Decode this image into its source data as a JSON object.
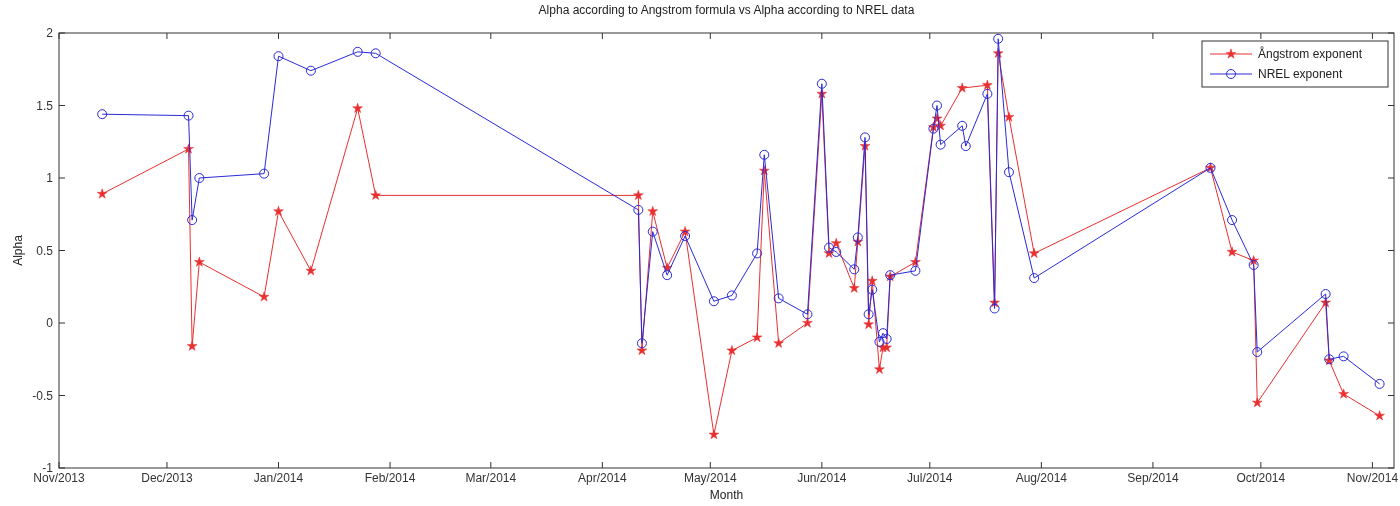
{
  "chart_data": {
    "type": "line",
    "title": "Alpha according to Angstrom formula vs Alpha according to NREL data",
    "xlabel": "Month",
    "ylabel": "Alpha",
    "xlim": [
      "2013-11-01",
      "2014-11-07"
    ],
    "xticks": [
      {
        "value": "2013-11-01",
        "label": "Nov/2013"
      },
      {
        "value": "2013-12-01",
        "label": "Dec/2013"
      },
      {
        "value": "2014-01-01",
        "label": "Jan/2014"
      },
      {
        "value": "2014-02-01",
        "label": "Feb/2014"
      },
      {
        "value": "2014-03-01",
        "label": "Mar/2014"
      },
      {
        "value": "2014-04-01",
        "label": "Apr/2014"
      },
      {
        "value": "2014-05-01",
        "label": "May/2014"
      },
      {
        "value": "2014-06-01",
        "label": "Jun/2014"
      },
      {
        "value": "2014-07-01",
        "label": "Jul/2014"
      },
      {
        "value": "2014-08-01",
        "label": "Aug/2014"
      },
      {
        "value": "2014-09-01",
        "label": "Sep/2014"
      },
      {
        "value": "2014-10-01",
        "label": "Oct/2014"
      },
      {
        "value": "2014-11-01",
        "label": "Nov/2014"
      }
    ],
    "ylim": [
      -1,
      2
    ],
    "yticks": [
      -1,
      -0.5,
      0,
      0.5,
      1,
      1.5,
      2
    ],
    "grid": false,
    "legend": "top right",
    "line_style": "solid",
    "series": [
      {
        "name": "Ångstrom exponent",
        "color": "#e83030",
        "marker": "star",
        "x": [
          "2013-11-13",
          "2013-12-07",
          "2013-12-08",
          "2013-12-10",
          "2013-12-28",
          "2014-01-01",
          "2014-01-10",
          "2014-01-23",
          "2014-01-28",
          "2014-04-11",
          "2014-04-12",
          "2014-04-15",
          "2014-04-19",
          "2014-04-24",
          "2014-05-02",
          "2014-05-07",
          "2014-05-14",
          "2014-05-16",
          "2014-05-20",
          "2014-05-28",
          "2014-06-01",
          "2014-06-03",
          "2014-06-05",
          "2014-06-10",
          "2014-06-11",
          "2014-06-13",
          "2014-06-14",
          "2014-06-15",
          "2014-06-17",
          "2014-06-18",
          "2014-06-19",
          "2014-06-20",
          "2014-06-27",
          "2014-07-02",
          "2014-07-03",
          "2014-07-04",
          "2014-07-10",
          "2014-07-17",
          "2014-07-19",
          "2014-07-20",
          "2014-07-23",
          "2014-07-30",
          "2014-09-17",
          "2014-09-23",
          "2014-09-29",
          "2014-09-30",
          "2014-10-19",
          "2014-10-20",
          "2014-10-24",
          "2014-11-03"
        ],
        "values": [
          0.89,
          1.2,
          -0.16,
          0.42,
          0.18,
          0.77,
          0.36,
          1.48,
          0.88,
          0.88,
          -0.19,
          0.77,
          0.38,
          0.63,
          -0.77,
          -0.19,
          -0.1,
          1.05,
          -0.14,
          0.0,
          1.58,
          0.48,
          0.55,
          0.24,
          0.56,
          1.22,
          -0.01,
          0.29,
          -0.32,
          -0.17,
          -0.17,
          0.32,
          0.42,
          1.35,
          1.41,
          1.36,
          1.62,
          1.64,
          0.14,
          1.86,
          1.42,
          0.48,
          1.07,
          0.49,
          0.43,
          -0.55,
          0.14,
          -0.26,
          -0.49,
          -0.64
        ]
      },
      {
        "name": "NREL exponent",
        "color": "#2a2ad8",
        "marker": "circle",
        "x": [
          "2013-11-13",
          "2013-12-07",
          "2013-12-08",
          "2013-12-10",
          "2013-12-28",
          "2014-01-01",
          "2014-01-10",
          "2014-01-23",
          "2014-01-28",
          "2014-04-11",
          "2014-04-12",
          "2014-04-15",
          "2014-04-19",
          "2014-04-24",
          "2014-05-02",
          "2014-05-07",
          "2014-05-14",
          "2014-05-16",
          "2014-05-20",
          "2014-05-28",
          "2014-06-01",
          "2014-06-03",
          "2014-06-05",
          "2014-06-10",
          "2014-06-11",
          "2014-06-13",
          "2014-06-14",
          "2014-06-15",
          "2014-06-17",
          "2014-06-18",
          "2014-06-19",
          "2014-06-20",
          "2014-06-27",
          "2014-07-02",
          "2014-07-03",
          "2014-07-04",
          "2014-07-10",
          "2014-07-11",
          "2014-07-17",
          "2014-07-19",
          "2014-07-20",
          "2014-07-23",
          "2014-07-30",
          "2014-09-17",
          "2014-09-23",
          "2014-09-29",
          "2014-09-30",
          "2014-10-19",
          "2014-10-20",
          "2014-10-24",
          "2014-11-03"
        ],
        "values": [
          1.44,
          1.43,
          0.71,
          1.0,
          1.03,
          1.84,
          1.74,
          1.87,
          1.86,
          0.78,
          -0.14,
          0.63,
          0.33,
          0.6,
          0.15,
          0.19,
          0.48,
          1.16,
          0.17,
          0.06,
          1.65,
          0.52,
          0.49,
          0.37,
          0.59,
          1.28,
          0.06,
          0.23,
          -0.13,
          -0.07,
          -0.11,
          0.33,
          0.36,
          1.34,
          1.5,
          1.23,
          1.36,
          1.22,
          1.58,
          0.1,
          1.96,
          1.04,
          0.31,
          1.07,
          0.71,
          0.4,
          -0.2,
          0.2,
          -0.25,
          -0.23,
          -0.42
        ]
      }
    ]
  }
}
